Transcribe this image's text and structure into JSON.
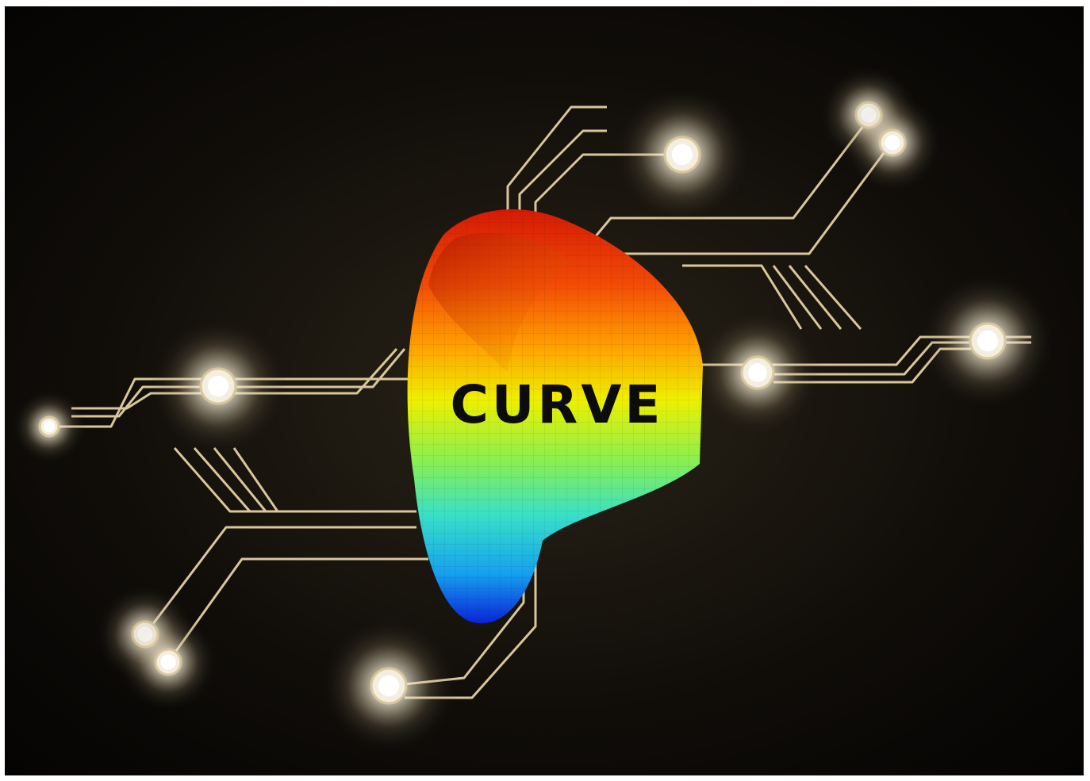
{
  "logo": {
    "text": "CURVE"
  }
}
